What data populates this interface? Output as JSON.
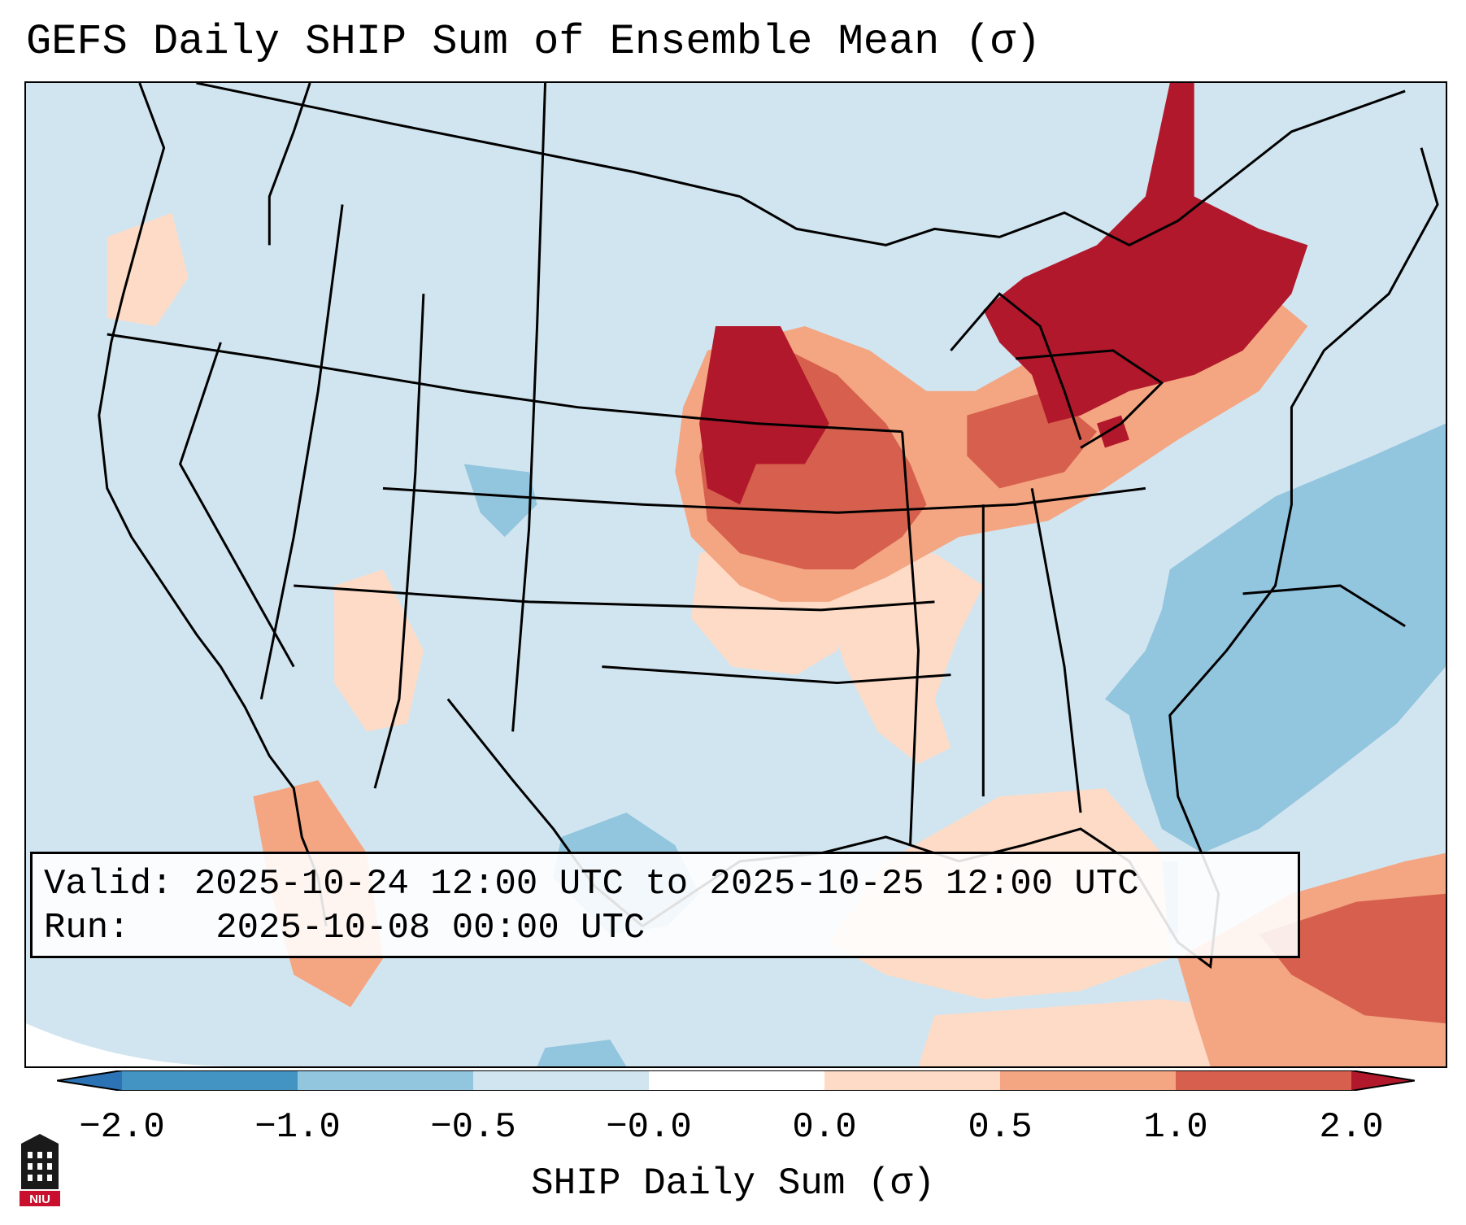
{
  "title": "GEFS Daily SHIP Sum of Ensemble Mean (σ)",
  "info": {
    "valid_label": "Valid:",
    "valid_value": "2025-10-24 12:00 UTC to 2025-10-25 12:00 UTC",
    "run_label": "Run:",
    "run_value": "2025-10-08 00:00 UTC"
  },
  "colorbar": {
    "label": "SHIP Daily Sum (σ)",
    "ticks": [
      "−2.0",
      "−1.0",
      "−0.5",
      "−0.0",
      "0.0",
      "0.5",
      "1.0",
      "2.0"
    ],
    "bins": [
      {
        "range": "< -2.0",
        "color": "#2c73b6"
      },
      {
        "range": "-2.0 to -1.0",
        "color": "#4393c3"
      },
      {
        "range": "-1.0 to -0.5",
        "color": "#92c5de"
      },
      {
        "range": "-0.5 to 0.0",
        "color": "#d1e5f0"
      },
      {
        "range": "0.0",
        "color": "#ffffff"
      },
      {
        "range": "0.0 to 0.5",
        "color": "#fddbc7"
      },
      {
        "range": "0.5 to 1.0",
        "color": "#f4a582"
      },
      {
        "range": "1.0 to 2.0",
        "color": "#d6604d"
      },
      {
        "range": "> 2.0",
        "color": "#b2182b"
      }
    ]
  },
  "map": {
    "region": "Continental United States",
    "anomaly_areas": [
      {
        "area": "Upper Midwest / Minnesota",
        "value_class": "> 2.0"
      },
      {
        "area": "Michigan / Southern Ontario / Quebec",
        "value_class": "> 2.0"
      },
      {
        "area": "Iowa / Illinois / Indiana",
        "value_class": "1.0 to 2.0"
      },
      {
        "area": "Caribbean / Cuba",
        "value_class": "1.0 to 2.0"
      },
      {
        "area": "Gulf of Mexico",
        "value_class": "0.0 to 0.5"
      },
      {
        "area": "Western Atlantic",
        "value_class": "-1.0 to -0.5"
      }
    ]
  },
  "logo_text": "NIU"
}
